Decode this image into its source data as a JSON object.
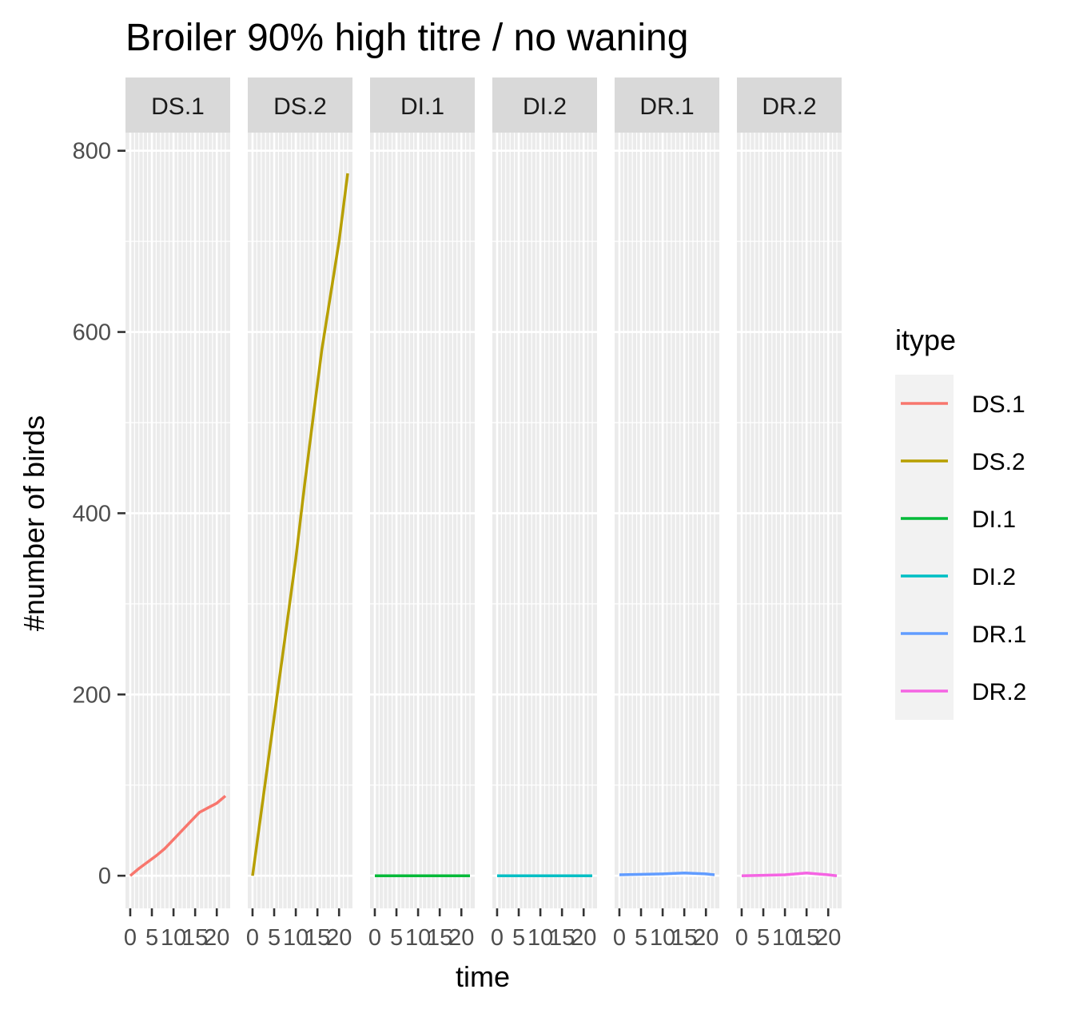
{
  "chart_data": {
    "type": "line",
    "title": "Broiler 90% high titre / no waning",
    "xlabel": "time",
    "ylabel": "#number of birds",
    "xlim": [
      0,
      22
    ],
    "ylim": [
      -36,
      820
    ],
    "x_ticks": [
      0,
      5,
      10,
      15,
      20
    ],
    "y_ticks": [
      0,
      200,
      400,
      600,
      800
    ],
    "grid": true,
    "legend": {
      "title": "itype",
      "position": "right"
    },
    "colors": {
      "DS.1": "#F8766D",
      "DS.2": "#B79F00",
      "DI.1": "#00BA38",
      "DI.2": "#00BFC4",
      "DR.1": "#619CFF",
      "DR.2": "#F564E3"
    },
    "facets": [
      "DS.1",
      "DS.2",
      "DI.1",
      "DI.2",
      "DR.1",
      "DR.2"
    ],
    "series": [
      {
        "name": "DS.1",
        "x": [
          0,
          2,
          4,
          6,
          8,
          10,
          12,
          14,
          16,
          18,
          20,
          22
        ],
        "y": [
          0,
          8,
          15,
          22,
          30,
          40,
          50,
          60,
          70,
          75,
          80,
          88
        ]
      },
      {
        "name": "DS.2",
        "x": [
          0,
          2,
          4,
          6,
          8,
          10,
          12,
          14,
          16,
          18,
          20,
          22
        ],
        "y": [
          0,
          70,
          140,
          210,
          280,
          350,
          430,
          505,
          580,
          640,
          700,
          775
        ]
      },
      {
        "name": "DI.1",
        "x": [
          0,
          22
        ],
        "y": [
          0,
          0
        ]
      },
      {
        "name": "DI.2",
        "x": [
          0,
          22
        ],
        "y": [
          0,
          0
        ]
      },
      {
        "name": "DR.1",
        "x": [
          0,
          10,
          15,
          20,
          22
        ],
        "y": [
          1,
          2,
          3,
          2,
          1
        ]
      },
      {
        "name": "DR.2",
        "x": [
          0,
          10,
          15,
          20,
          22
        ],
        "y": [
          0,
          1,
          3,
          1,
          0
        ]
      }
    ]
  }
}
